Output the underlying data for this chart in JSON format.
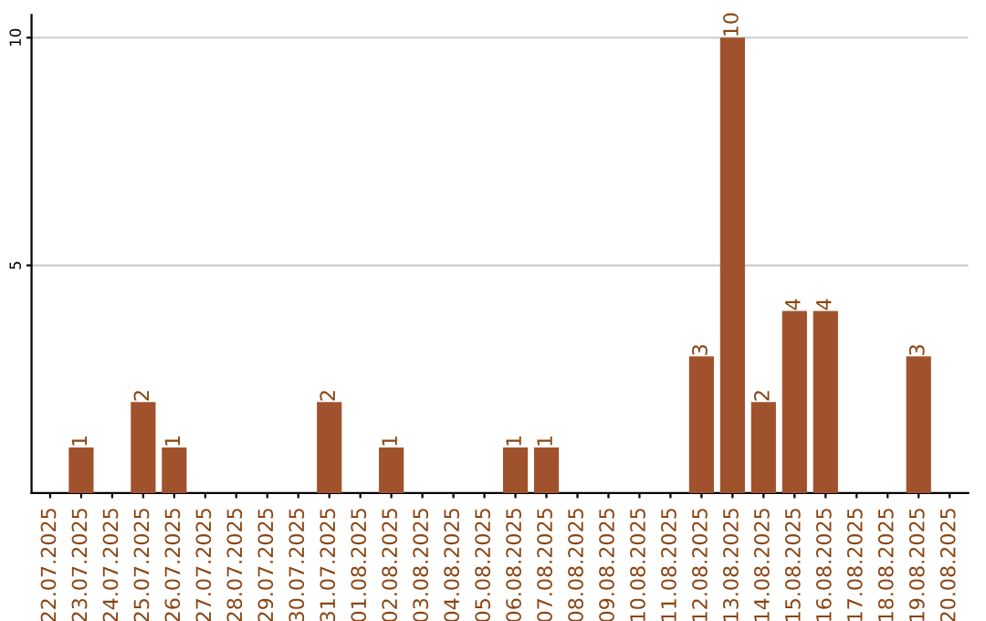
{
  "chart_data": {
    "type": "bar",
    "categories": [
      "22.07.2025",
      "23.07.2025",
      "24.07.2025",
      "25.07.2025",
      "26.07.2025",
      "27.07.2025",
      "28.07.2025",
      "29.07.2025",
      "30.07.2025",
      "31.07.2025",
      "01.08.2025",
      "02.08.2025",
      "03.08.2025",
      "04.08.2025",
      "05.08.2025",
      "06.08.2025",
      "07.08.2025",
      "08.08.2025",
      "09.08.2025",
      "10.08.2025",
      "11.08.2025",
      "12.08.2025",
      "13.08.2025",
      "14.08.2025",
      "15.08.2025",
      "16.08.2025",
      "17.08.2025",
      "18.08.2025",
      "19.08.2025",
      "20.08.2025"
    ],
    "values": [
      0,
      1,
      0,
      2,
      1,
      0,
      0,
      0,
      0,
      2,
      0,
      1,
      0,
      0,
      0,
      1,
      1,
      0,
      0,
      0,
      0,
      3,
      10,
      2,
      4,
      4,
      0,
      0,
      3,
      0
    ],
    "value_labels": [
      null,
      "1",
      null,
      "2",
      "1",
      null,
      null,
      null,
      null,
      "2",
      null,
      "1",
      null,
      null,
      null,
      "1",
      "1",
      null,
      null,
      null,
      null,
      "3",
      "10",
      "2",
      "4",
      "4",
      null,
      null,
      "3",
      null
    ],
    "color": "#a0522d",
    "ylim": [
      0,
      10.5
    ],
    "yticks": [
      5,
      10
    ],
    "grid": "y"
  }
}
